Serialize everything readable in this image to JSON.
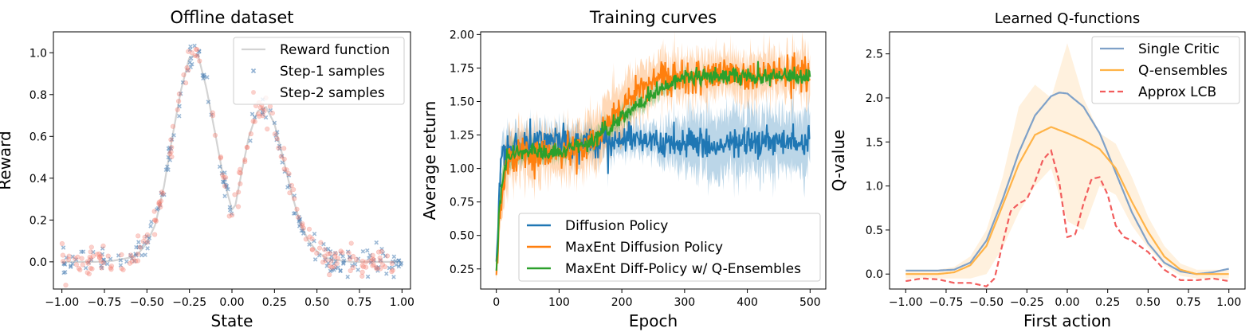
{
  "chart_data": [
    {
      "type": "scatter",
      "title": "Offline dataset",
      "xlabel": "State",
      "ylabel": "Reward",
      "xlim": [
        -1.05,
        1.05
      ],
      "ylim": [
        -0.13,
        1.1
      ],
      "xticks": [
        -1.0,
        -0.75,
        -0.5,
        -0.25,
        0.0,
        0.25,
        0.5,
        0.75,
        1.0
      ],
      "xtick_labels": [
        "−1.00",
        "−0.75",
        "−0.50",
        "−0.25",
        "0.00",
        "0.25",
        "0.50",
        "0.75",
        "1.00"
      ],
      "yticks": [
        0.0,
        0.2,
        0.4,
        0.6,
        0.8,
        1.0
      ],
      "ytick_labels": [
        "0.0",
        "0.2",
        "0.4",
        "0.6",
        "0.8",
        "1.0"
      ],
      "legend": [
        "Reward function",
        "Step-1 samples",
        "Step-2 samples"
      ],
      "legend_position": "top-right",
      "colors": {
        "reward": "#d3d3d3",
        "step1": "#4a7fb5",
        "step2": "#f47c6c"
      },
      "reward_function": {
        "x": [
          -1.0,
          -0.9,
          -0.8,
          -0.7,
          -0.6,
          -0.55,
          -0.5,
          -0.45,
          -0.4,
          -0.35,
          -0.3,
          -0.25,
          -0.2,
          -0.15,
          -0.1,
          -0.05,
          0.0,
          0.02,
          0.05,
          0.1,
          0.15,
          0.2,
          0.25,
          0.3,
          0.35,
          0.4,
          0.45,
          0.5,
          0.55,
          0.6,
          0.7,
          0.8,
          0.9,
          1.0
        ],
        "y": [
          0.0,
          0.0,
          0.0,
          0.005,
          0.02,
          0.04,
          0.09,
          0.18,
          0.36,
          0.6,
          0.82,
          0.98,
          0.99,
          0.83,
          0.62,
          0.4,
          0.25,
          0.27,
          0.4,
          0.6,
          0.72,
          0.74,
          0.66,
          0.5,
          0.33,
          0.19,
          0.1,
          0.05,
          0.02,
          0.01,
          0.0,
          0.0,
          0.0,
          0.0
        ]
      },
      "samples_per_step": 200
    },
    {
      "type": "line",
      "title": "Training curves",
      "xlabel": "Epoch",
      "ylabel": "Average return",
      "xlim": [
        -25,
        525
      ],
      "ylim": [
        0.1,
        2.02
      ],
      "xticks": [
        0,
        100,
        200,
        300,
        400,
        500
      ],
      "xtick_labels": [
        "0",
        "100",
        "200",
        "300",
        "400",
        "500"
      ],
      "yticks": [
        0.25,
        0.5,
        0.75,
        1.0,
        1.25,
        1.5,
        1.75,
        2.0
      ],
      "ytick_labels": [
        "0.25",
        "0.50",
        "0.75",
        "1.00",
        "1.25",
        "1.50",
        "1.75",
        "2.00"
      ],
      "legend_position": "lower-right",
      "series": [
        {
          "name": "Diffusion Policy",
          "color": "#1f77b4",
          "x": [
            0,
            5,
            10,
            20,
            40,
            100,
            150,
            200,
            250,
            300,
            350,
            400,
            450,
            500
          ],
          "y": [
            0.25,
            0.85,
            1.05,
            1.15,
            1.17,
            1.2,
            1.2,
            1.2,
            1.19,
            1.18,
            1.17,
            1.2,
            1.2,
            1.2
          ],
          "band": [
            0.05,
            0.08,
            0.1,
            0.12,
            0.1,
            0.1,
            0.1,
            0.1,
            0.1,
            0.18,
            0.25,
            0.22,
            0.2,
            0.22
          ]
        },
        {
          "name": "MaxEnt Diffusion Policy",
          "color": "#ff7f0e",
          "x": [
            0,
            5,
            10,
            20,
            40,
            100,
            150,
            200,
            230,
            260,
            300,
            350,
            400,
            450,
            500
          ],
          "y": [
            0.22,
            0.6,
            0.9,
            1.05,
            1.1,
            1.12,
            1.18,
            1.45,
            1.62,
            1.7,
            1.68,
            1.7,
            1.7,
            1.7,
            1.7
          ],
          "band": [
            0.05,
            0.1,
            0.15,
            0.18,
            0.18,
            0.15,
            0.2,
            0.2,
            0.18,
            0.15,
            0.15,
            0.15,
            0.15,
            0.15,
            0.15
          ]
        },
        {
          "name": "MaxEnt Diff-Policy w/ Q-Ensembles",
          "color": "#2ca02c",
          "x": [
            0,
            5,
            10,
            20,
            40,
            100,
            150,
            200,
            250,
            290,
            300,
            350,
            400,
            450,
            500
          ],
          "y": [
            0.22,
            0.7,
            0.95,
            1.1,
            1.12,
            1.13,
            1.2,
            1.38,
            1.56,
            1.66,
            1.68,
            1.69,
            1.69,
            1.68,
            1.69
          ],
          "band": [
            0.05,
            0.08,
            0.1,
            0.08,
            0.06,
            0.06,
            0.06,
            0.06,
            0.05,
            0.04,
            0.04,
            0.03,
            0.03,
            0.03,
            0.03
          ]
        }
      ]
    },
    {
      "type": "line",
      "title": "Learned Q-functions",
      "xlabel": "First action",
      "ylabel": "Q-value",
      "xlim": [
        -1.1,
        1.1
      ],
      "ylim": [
        -0.17,
        2.75
      ],
      "xticks": [
        -1.0,
        -0.75,
        -0.5,
        -0.25,
        0.0,
        0.25,
        0.5,
        0.75,
        1.0
      ],
      "xtick_labels": [
        "−1.00",
        "−0.75",
        "−0.50",
        "−0.25",
        "0.00",
        "0.25",
        "0.50",
        "0.75",
        "1.00"
      ],
      "yticks": [
        0.0,
        0.5,
        1.0,
        1.5,
        2.0,
        2.5
      ],
      "ytick_labels": [
        "0.0",
        "0.5",
        "1.0",
        "1.5",
        "2.0",
        "2.5"
      ],
      "legend_position": "top-right",
      "series": [
        {
          "name": "Single Critic",
          "color": "#7fa1c8",
          "style": "solid",
          "x": [
            -1.0,
            -0.8,
            -0.7,
            -0.6,
            -0.5,
            -0.4,
            -0.3,
            -0.2,
            -0.1,
            -0.05,
            0.0,
            0.1,
            0.2,
            0.3,
            0.4,
            0.5,
            0.6,
            0.7,
            0.8,
            0.9,
            1.0
          ],
          "y": [
            0.04,
            0.04,
            0.05,
            0.13,
            0.38,
            0.85,
            1.38,
            1.8,
            2.02,
            2.06,
            2.05,
            1.9,
            1.6,
            1.15,
            0.7,
            0.35,
            0.13,
            0.03,
            0.0,
            0.02,
            0.06
          ]
        },
        {
          "name": "Q-ensembles",
          "color": "#ffb347",
          "style": "solid",
          "x": [
            -1.0,
            -0.8,
            -0.7,
            -0.6,
            -0.5,
            -0.4,
            -0.3,
            -0.2,
            -0.1,
            0.0,
            0.1,
            0.2,
            0.3,
            0.4,
            0.5,
            0.6,
            0.7,
            0.8,
            0.9,
            1.0
          ],
          "y": [
            0.0,
            0.0,
            0.02,
            0.1,
            0.32,
            0.78,
            1.25,
            1.58,
            1.67,
            1.6,
            1.52,
            1.42,
            1.2,
            0.82,
            0.48,
            0.2,
            0.05,
            0.0,
            0.0,
            0.0
          ],
          "band_upper": [
            0.05,
            0.05,
            0.08,
            0.2,
            0.5,
            1.1,
            1.9,
            2.15,
            2.0,
            2.62,
            2.0,
            1.6,
            1.48,
            1.1,
            0.65,
            0.32,
            0.12,
            0.05,
            0.05,
            0.05
          ],
          "band_lower": [
            -0.05,
            -0.05,
            -0.05,
            -0.05,
            0.0,
            0.3,
            0.7,
            1.0,
            1.2,
            0.6,
            0.5,
            1.0,
            0.9,
            0.55,
            0.3,
            0.1,
            -0.02,
            -0.05,
            -0.05,
            -0.05
          ]
        },
        {
          "name": "Approx LCB",
          "color": "#f25c5c",
          "style": "dashed",
          "x": [
            -1.0,
            -0.9,
            -0.8,
            -0.7,
            -0.6,
            -0.5,
            -0.45,
            -0.4,
            -0.35,
            -0.3,
            -0.25,
            -0.2,
            -0.15,
            -0.1,
            -0.05,
            0.0,
            0.05,
            0.1,
            0.15,
            0.2,
            0.25,
            0.3,
            0.35,
            0.4,
            0.5,
            0.6,
            0.7,
            0.8,
            0.9,
            1.0
          ],
          "y": [
            -0.08,
            -0.05,
            -0.06,
            -0.1,
            -0.1,
            -0.14,
            -0.05,
            0.35,
            0.72,
            0.8,
            0.85,
            1.05,
            1.3,
            1.4,
            1.05,
            0.42,
            0.45,
            0.8,
            1.08,
            1.1,
            0.9,
            0.55,
            0.42,
            0.38,
            0.25,
            0.05,
            -0.07,
            -0.07,
            -0.05,
            -0.08
          ]
        }
      ]
    }
  ]
}
